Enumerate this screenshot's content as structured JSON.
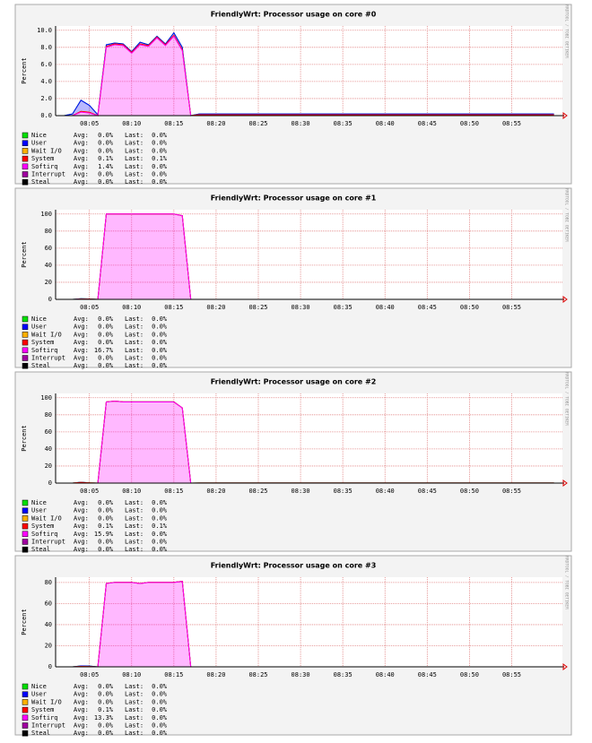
{
  "chart_data": [
    {
      "type": "area",
      "title": "FriendlyWrt: Processor usage on core #0",
      "y_label": "Percent",
      "watermark": "RRDTOOL / TOBI OETIKER",
      "avg_label": "Avg:",
      "last_label": "Last:",
      "x": [
        "08:02",
        "08:03",
        "08:04",
        "08:05",
        "08:06",
        "08:07",
        "08:08",
        "08:09",
        "08:10",
        "08:11",
        "08:12",
        "08:13",
        "08:14",
        "08:15",
        "08:16",
        "08:17",
        "08:18",
        "09:00"
      ],
      "xlim": [
        "08:01",
        "09:01"
      ],
      "xticks": [
        "08:05",
        "08:10",
        "08:15",
        "08:20",
        "08:25",
        "08:30",
        "08:35",
        "08:40",
        "08:45",
        "08:50",
        "08:55"
      ],
      "ylim": [
        0,
        10.5
      ],
      "yticks": [
        {
          "value": 0,
          "label": "0.0"
        },
        {
          "value": 2,
          "label": "2.0"
        },
        {
          "value": 4,
          "label": "4.0"
        },
        {
          "value": 6,
          "label": "6.0"
        },
        {
          "value": 8,
          "label": "8.0"
        },
        {
          "value": 10,
          "label": "10.0"
        }
      ],
      "grid": true,
      "series": [
        {
          "name": "Nice",
          "color": "#00e000",
          "avg": "0.0%",
          "last": "0.0%",
          "values": [
            0,
            0,
            0,
            0,
            0,
            0,
            0,
            0,
            0,
            0,
            0,
            0,
            0,
            0,
            0,
            0,
            0,
            0
          ]
        },
        {
          "name": "User",
          "color": "#0000ff",
          "avg": "0.0%",
          "last": "0.0%",
          "values": [
            0,
            0.2,
            1.3,
            0.8,
            0.1,
            0.2,
            0.1,
            0.1,
            0.1,
            0.2,
            0.1,
            0.1,
            0.1,
            0.3,
            0.3,
            0,
            0.1,
            0.1
          ]
        },
        {
          "name": "Wait I/O",
          "color": "#ffb000",
          "avg": "0.0%",
          "last": "0.0%",
          "values": [
            0,
            0,
            0,
            0,
            0,
            0,
            0,
            0,
            0,
            0,
            0,
            0,
            0,
            0,
            0,
            0,
            0,
            0
          ]
        },
        {
          "name": "System",
          "color": "#ff0000",
          "avg": "0.1%",
          "last": "0.1%",
          "values": [
            0,
            0,
            0.1,
            0.1,
            0,
            0.1,
            0.1,
            0.1,
            0.1,
            0.1,
            0.1,
            0.1,
            0.1,
            0.1,
            0.1,
            0,
            0.1,
            0.1
          ]
        },
        {
          "name": "Softirq",
          "color": "#ff00ff",
          "avg": "1.4%",
          "last": "0.0%",
          "values": [
            0,
            0,
            0.4,
            0.3,
            0,
            8.0,
            8.3,
            8.2,
            7.3,
            8.3,
            8.1,
            9.1,
            8.2,
            9.3,
            7.6,
            0,
            0,
            0
          ]
        },
        {
          "name": "Interrupt",
          "color": "#a000a0",
          "avg": "0.0%",
          "last": "0.0%",
          "values": [
            0,
            0,
            0,
            0,
            0,
            0,
            0,
            0,
            0,
            0,
            0,
            0,
            0,
            0,
            0,
            0,
            0,
            0
          ]
        },
        {
          "name": "Steal",
          "color": "#000000",
          "avg": "0.0%",
          "last": "0.0%",
          "values": [
            0,
            0,
            0,
            0,
            0,
            0,
            0,
            0,
            0,
            0,
            0,
            0,
            0,
            0,
            0,
            0,
            0,
            0
          ]
        }
      ]
    },
    {
      "type": "area",
      "title": "FriendlyWrt: Processor usage on core #1",
      "y_label": "Percent",
      "watermark": "RRDTOOL / TOBI OETIKER",
      "avg_label": "Avg:",
      "last_label": "Last:",
      "x": [
        "08:02",
        "08:03",
        "08:04",
        "08:05",
        "08:06",
        "08:07",
        "08:08",
        "08:09",
        "08:10",
        "08:11",
        "08:12",
        "08:13",
        "08:14",
        "08:15",
        "08:16",
        "08:17",
        "08:18",
        "09:00"
      ],
      "xlim": [
        "08:01",
        "09:01"
      ],
      "xticks": [
        "08:05",
        "08:10",
        "08:15",
        "08:20",
        "08:25",
        "08:30",
        "08:35",
        "08:40",
        "08:45",
        "08:50",
        "08:55"
      ],
      "ylim": [
        0,
        105
      ],
      "yticks": [
        0,
        20,
        40,
        60,
        80,
        100
      ],
      "grid": true,
      "series": [
        {
          "name": "Nice",
          "color": "#00e000",
          "avg": "0.0%",
          "last": "0.0%",
          "values": [
            0,
            0,
            0,
            0,
            0,
            0,
            0,
            0,
            0,
            0,
            0,
            0,
            0,
            0,
            0,
            0,
            0,
            0
          ]
        },
        {
          "name": "User",
          "color": "#0000ff",
          "avg": "0.0%",
          "last": "0.0%",
          "values": [
            0,
            0,
            0.5,
            0.3,
            0,
            0,
            0,
            0,
            0,
            0,
            0,
            0,
            0,
            0,
            0,
            0,
            0,
            0
          ]
        },
        {
          "name": "Wait I/O",
          "color": "#ffb000",
          "avg": "0.0%",
          "last": "0.0%",
          "values": [
            0,
            0,
            0,
            0,
            0,
            0,
            0,
            0,
            0,
            0,
            0,
            0,
            0,
            0,
            0,
            0,
            0,
            0
          ]
        },
        {
          "name": "System",
          "color": "#ff0000",
          "avg": "0.0%",
          "last": "0.0%",
          "values": [
            0,
            0,
            0.3,
            0.2,
            0,
            0,
            0,
            0,
            0,
            0,
            0,
            0,
            0,
            0,
            0,
            0,
            0,
            0
          ]
        },
        {
          "name": "Softirq",
          "color": "#ff00ff",
          "avg": "16.7%",
          "last": "0.0%",
          "values": [
            0,
            0,
            0,
            0,
            0,
            100,
            100,
            100,
            100,
            100,
            100,
            100,
            100,
            100,
            98,
            0,
            0,
            0
          ]
        },
        {
          "name": "Interrupt",
          "color": "#a000a0",
          "avg": "0.0%",
          "last": "0.0%",
          "values": [
            0,
            0,
            0,
            0,
            0,
            0,
            0,
            0,
            0,
            0,
            0,
            0,
            0,
            0,
            0,
            0,
            0,
            0
          ]
        },
        {
          "name": "Steal",
          "color": "#000000",
          "avg": "0.0%",
          "last": "0.0%",
          "values": [
            0,
            0,
            0,
            0,
            0,
            0,
            0,
            0,
            0,
            0,
            0,
            0,
            0,
            0,
            0,
            0,
            0,
            0
          ]
        }
      ]
    },
    {
      "type": "area",
      "title": "FriendlyWrt: Processor usage on core #2",
      "y_label": "Percent",
      "watermark": "RRDTOOL / TOBI OETIKER",
      "avg_label": "Avg:",
      "last_label": "Last:",
      "x": [
        "08:02",
        "08:03",
        "08:04",
        "08:05",
        "08:06",
        "08:07",
        "08:08",
        "08:09",
        "08:10",
        "08:11",
        "08:12",
        "08:13",
        "08:14",
        "08:15",
        "08:16",
        "08:17",
        "08:18",
        "09:00"
      ],
      "xlim": [
        "08:01",
        "09:01"
      ],
      "xticks": [
        "08:05",
        "08:10",
        "08:15",
        "08:20",
        "08:25",
        "08:30",
        "08:35",
        "08:40",
        "08:45",
        "08:50",
        "08:55"
      ],
      "ylim": [
        0,
        105
      ],
      "yticks": [
        0,
        20,
        40,
        60,
        80,
        100
      ],
      "grid": true,
      "series": [
        {
          "name": "Nice",
          "color": "#00e000",
          "avg": "0.0%",
          "last": "0.0%",
          "values": [
            0,
            0,
            0,
            0,
            0,
            0,
            0,
            0,
            0,
            0,
            0,
            0,
            0,
            0,
            0,
            0,
            0,
            0
          ]
        },
        {
          "name": "User",
          "color": "#0000ff",
          "avg": "0.0%",
          "last": "0.0%",
          "values": [
            0,
            0,
            0.3,
            0,
            0,
            0,
            0,
            0,
            0,
            0,
            0,
            0,
            0,
            0,
            0,
            0,
            0,
            0
          ]
        },
        {
          "name": "Wait I/O",
          "color": "#ffb000",
          "avg": "0.0%",
          "last": "0.0%",
          "values": [
            0,
            0,
            0,
            0,
            0,
            0,
            0,
            0,
            0,
            0,
            0,
            0,
            0,
            0,
            0,
            0,
            0,
            0
          ]
        },
        {
          "name": "System",
          "color": "#ff0000",
          "avg": "0.1%",
          "last": "0.1%",
          "values": [
            0,
            0,
            0.8,
            0.3,
            0,
            0.1,
            0.1,
            0.1,
            0.1,
            0.1,
            0.1,
            0.1,
            0.1,
            0.1,
            0.1,
            0,
            0.1,
            0.1
          ]
        },
        {
          "name": "Softirq",
          "color": "#ff00ff",
          "avg": "15.9%",
          "last": "0.0%",
          "values": [
            0,
            0,
            0,
            0,
            0,
            95,
            96,
            95,
            95,
            95,
            95,
            95,
            95,
            95,
            88,
            0,
            0,
            0
          ]
        },
        {
          "name": "Interrupt",
          "color": "#a000a0",
          "avg": "0.0%",
          "last": "0.0%",
          "values": [
            0,
            0,
            0,
            0,
            0,
            0,
            0,
            0,
            0,
            0,
            0,
            0,
            0,
            0,
            0,
            0,
            0,
            0
          ]
        },
        {
          "name": "Steal",
          "color": "#000000",
          "avg": "0.0%",
          "last": "0.0%",
          "values": [
            0,
            0,
            0,
            0,
            0,
            0,
            0,
            0,
            0,
            0,
            0,
            0,
            0,
            0,
            0,
            0,
            0,
            0
          ]
        }
      ]
    },
    {
      "type": "area",
      "title": "FriendlyWrt: Processor usage on core #3",
      "y_label": "Percent",
      "watermark": "RRDTOOL / TOBI OETIKER",
      "avg_label": "Avg:",
      "last_label": "Last:",
      "x": [
        "08:02",
        "08:03",
        "08:04",
        "08:05",
        "08:06",
        "08:07",
        "08:08",
        "08:09",
        "08:10",
        "08:11",
        "08:12",
        "08:13",
        "08:14",
        "08:15",
        "08:16",
        "08:17",
        "08:18",
        "09:00"
      ],
      "xlim": [
        "08:01",
        "09:01"
      ],
      "xticks": [
        "08:05",
        "08:10",
        "08:15",
        "08:20",
        "08:25",
        "08:30",
        "08:35",
        "08:40",
        "08:45",
        "08:50",
        "08:55"
      ],
      "ylim": [
        0,
        85
      ],
      "yticks": [
        0,
        20,
        40,
        60,
        80
      ],
      "grid": true,
      "series": [
        {
          "name": "Nice",
          "color": "#00e000",
          "avg": "0.0%",
          "last": "0.0%",
          "values": [
            0,
            0,
            0,
            0,
            0,
            0,
            0,
            0,
            0,
            0,
            0,
            0,
            0,
            0,
            0,
            0,
            0,
            0
          ]
        },
        {
          "name": "User",
          "color": "#0000ff",
          "avg": "0.0%",
          "last": "0.0%",
          "values": [
            0,
            0,
            0.6,
            0.5,
            0,
            0,
            0,
            0,
            0,
            0,
            0,
            0,
            0,
            0,
            0,
            0,
            0,
            0
          ]
        },
        {
          "name": "Wait I/O",
          "color": "#ffb000",
          "avg": "0.0%",
          "last": "0.0%",
          "values": [
            0,
            0,
            0,
            0,
            0,
            0,
            0,
            0,
            0,
            0,
            0,
            0,
            0,
            0,
            0,
            0,
            0,
            0
          ]
        },
        {
          "name": "System",
          "color": "#ff0000",
          "avg": "0.1%",
          "last": "0.0%",
          "values": [
            0,
            0,
            0.3,
            0.2,
            0,
            0.1,
            0.1,
            0.1,
            0.1,
            0.1,
            0.1,
            0.1,
            0.1,
            0.1,
            0.1,
            0,
            0,
            0
          ]
        },
        {
          "name": "Softirq",
          "color": "#ff00ff",
          "avg": "13.3%",
          "last": "0.0%",
          "values": [
            0,
            0,
            0,
            0,
            0,
            79,
            80,
            80,
            80,
            79,
            80,
            80,
            80,
            80,
            81,
            0,
            0,
            0
          ]
        },
        {
          "name": "Interrupt",
          "color": "#a000a0",
          "avg": "0.0%",
          "last": "0.0%",
          "values": [
            0,
            0,
            0,
            0,
            0,
            0,
            0,
            0,
            0,
            0,
            0,
            0,
            0,
            0,
            0,
            0,
            0,
            0
          ]
        },
        {
          "name": "Steal",
          "color": "#000000",
          "avg": "0.0%",
          "last": "0.0%",
          "values": [
            0,
            0,
            0,
            0,
            0,
            0,
            0,
            0,
            0,
            0,
            0,
            0,
            0,
            0,
            0,
            0,
            0,
            0
          ]
        }
      ]
    }
  ]
}
